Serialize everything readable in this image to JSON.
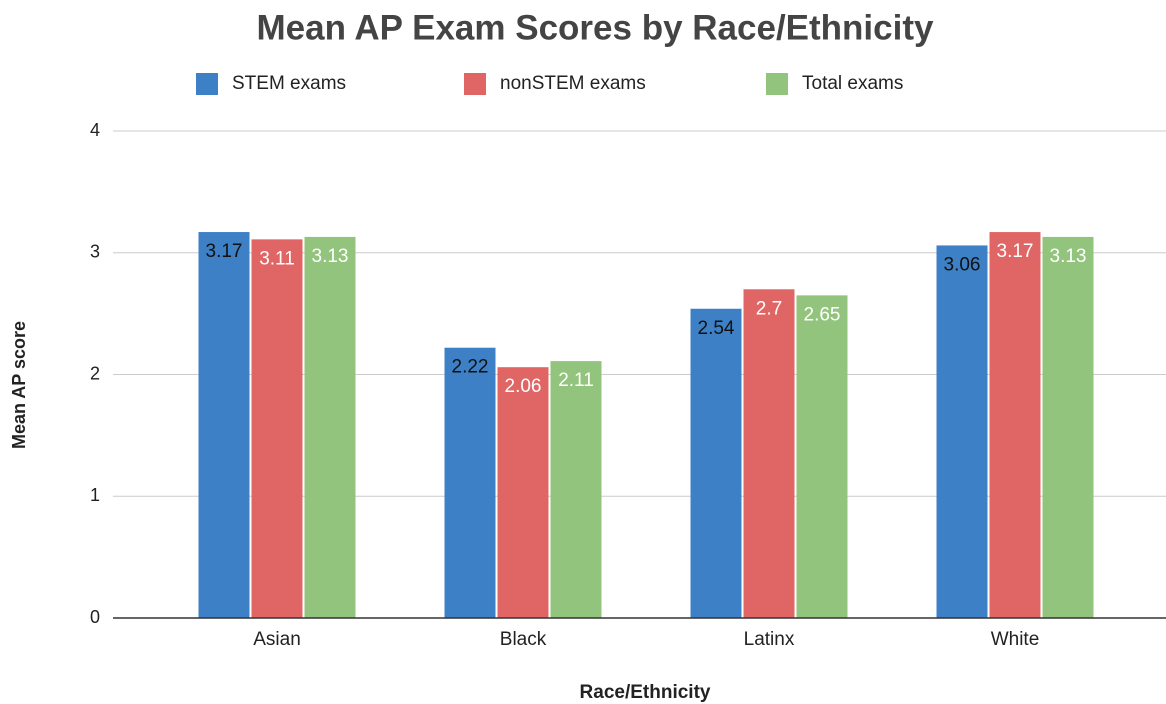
{
  "chart_data": {
    "type": "bar",
    "title": "Mean AP Exam Scores by Race/Ethnicity",
    "x_label": "Race/Ethnicity",
    "y_label": "Mean AP score",
    "categories": [
      "Asian",
      "Black",
      "Latinx",
      "White"
    ],
    "series": [
      {
        "name": "STEM exams",
        "color": "#3d80c6",
        "values": [
          3.17,
          2.22,
          2.54,
          3.06
        ]
      },
      {
        "name": "nonSTEM exams",
        "color": "#e06666",
        "values": [
          3.11,
          2.06,
          2.7,
          3.17
        ]
      },
      {
        "name": "Total exams",
        "color": "#93c47d",
        "values": [
          3.13,
          2.11,
          2.65,
          3.13
        ]
      }
    ],
    "ylim": [
      0,
      4
    ],
    "yticks": [
      0,
      1,
      2,
      3,
      4
    ],
    "grid": true,
    "legend": "top"
  }
}
